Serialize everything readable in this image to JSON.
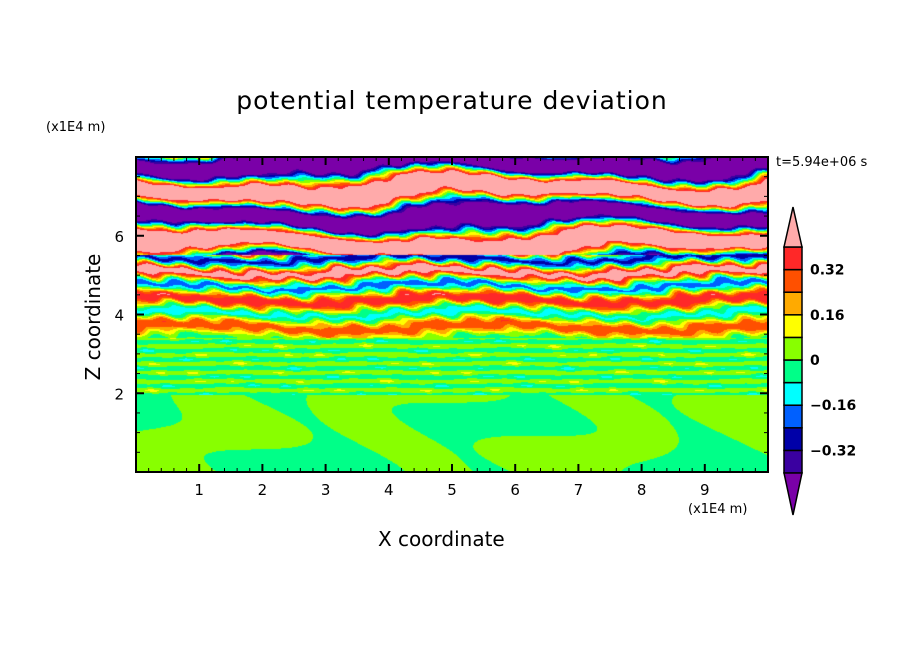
{
  "chart_data": {
    "type": "heatmap",
    "subtype": "filled-contour",
    "title": "potential temperature deviation",
    "xlabel": "X coordinate",
    "ylabel": "Z coordinate",
    "x_unit": "(x1E4 m)",
    "y_unit": "(x1E4 m)",
    "time_label": "t=5.94e+06 s",
    "xlim": [
      0,
      10
    ],
    "ylim": [
      0,
      8
    ],
    "x_ticks": [
      1,
      2,
      3,
      4,
      5,
      6,
      7,
      8,
      9
    ],
    "y_ticks": [
      2,
      4,
      6
    ],
    "x_minor_step": 0.2,
    "y_minor_step": 0.5,
    "colorbar": {
      "levels": [
        -0.4,
        -0.32,
        -0.24,
        -0.16,
        -0.08,
        0,
        0.08,
        0.16,
        0.24,
        0.32,
        0.4
      ],
      "tick_labels": [
        "0.32",
        "0.16",
        "0",
        "−0.16",
        "−0.32"
      ],
      "tick_values": [
        0.32,
        0.16,
        0,
        -0.16,
        -0.32
      ],
      "colors": [
        "#7a00a8",
        "#3a00a0",
        "#0000a8",
        "#0060ff",
        "#00ffff",
        "#00ff88",
        "#88ff00",
        "#ffff00",
        "#ffaa00",
        "#ff5000",
        "#ff2828",
        "#ffaaaa"
      ],
      "extend": "both"
    }
  }
}
